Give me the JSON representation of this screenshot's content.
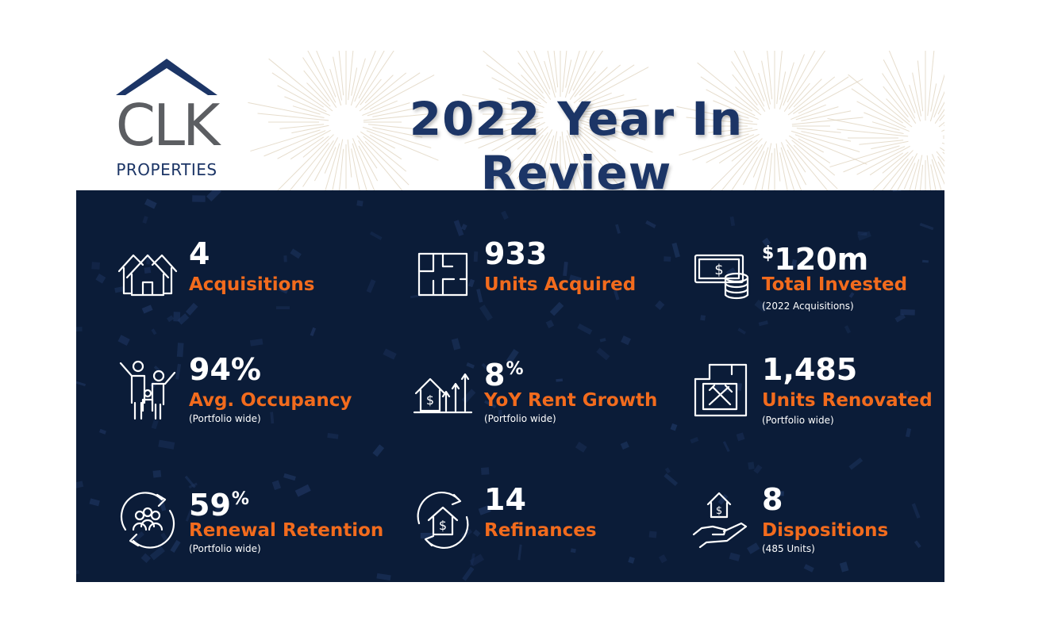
{
  "brand": {
    "logo_main": "CLK",
    "logo_sub": "PROPERTIES",
    "navy": "#1c3566",
    "panel": "#0b1c38",
    "accent": "#f26b1d"
  },
  "title": "2022 Year In Review",
  "stats": [
    {
      "icon": "houses-icon",
      "value": "4",
      "label": "Acquisitions",
      "note": ""
    },
    {
      "icon": "floor-plan-icon",
      "value": "933",
      "label": "Units Acquired",
      "note": ""
    },
    {
      "icon": "money-coins-icon",
      "currency": "$",
      "value": "120m",
      "label": "Total Invested",
      "note": "(2022 Acquisitions)"
    },
    {
      "icon": "family-icon",
      "value": "94%",
      "label": "Avg. Occupancy",
      "note": "(Portfolio wide)"
    },
    {
      "icon": "rent-growth-icon",
      "value": "8",
      "suffix": "%",
      "label": "YoY Rent Growth",
      "note": "(Portfolio wide)"
    },
    {
      "icon": "renovation-tools-icon",
      "value": "1,485",
      "label": "Units Renovated",
      "note": "(Portfolio wide)"
    },
    {
      "icon": "people-cycle-icon",
      "value": "59",
      "suffix": "%",
      "label": "Renewal Retention",
      "note": "(Portfolio wide)"
    },
    {
      "icon": "refinance-icon",
      "value": "14",
      "label": "Refinances",
      "note": ""
    },
    {
      "icon": "hand-house-icon",
      "value": "8",
      "label": "Dispositions",
      "note": "(485 Units)"
    }
  ]
}
